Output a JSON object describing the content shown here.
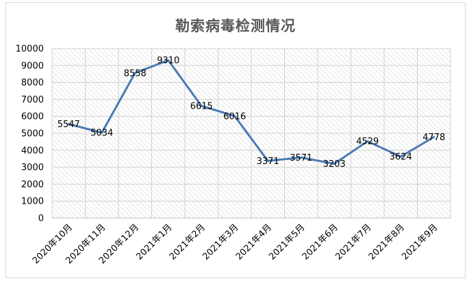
{
  "chart_data": {
    "type": "line",
    "title": "勒索病毒检测情况",
    "categories": [
      "2020年10月",
      "2020年11月",
      "2020年12月",
      "2021年1月",
      "2021年2月",
      "2021年3月",
      "2021年4月",
      "2021年5月",
      "2021年6月",
      "2021年7月",
      "2021年8月",
      "2021年9月"
    ],
    "series": [
      {
        "values": [
          5547,
          5034,
          8558,
          9310,
          6615,
          6016,
          3371,
          3571,
          3203,
          4529,
          3624,
          4778
        ]
      }
    ],
    "ylim": [
      0,
      10000
    ],
    "yticks": [
      "0",
      "1000",
      "2000",
      "3000",
      "4000",
      "5000",
      "6000",
      "7000",
      "8000",
      "9000",
      "10000"
    ],
    "grid": true,
    "legend": "none",
    "line_color": "#4a79b4",
    "plot_pattern": "diagonal-hatch"
  }
}
